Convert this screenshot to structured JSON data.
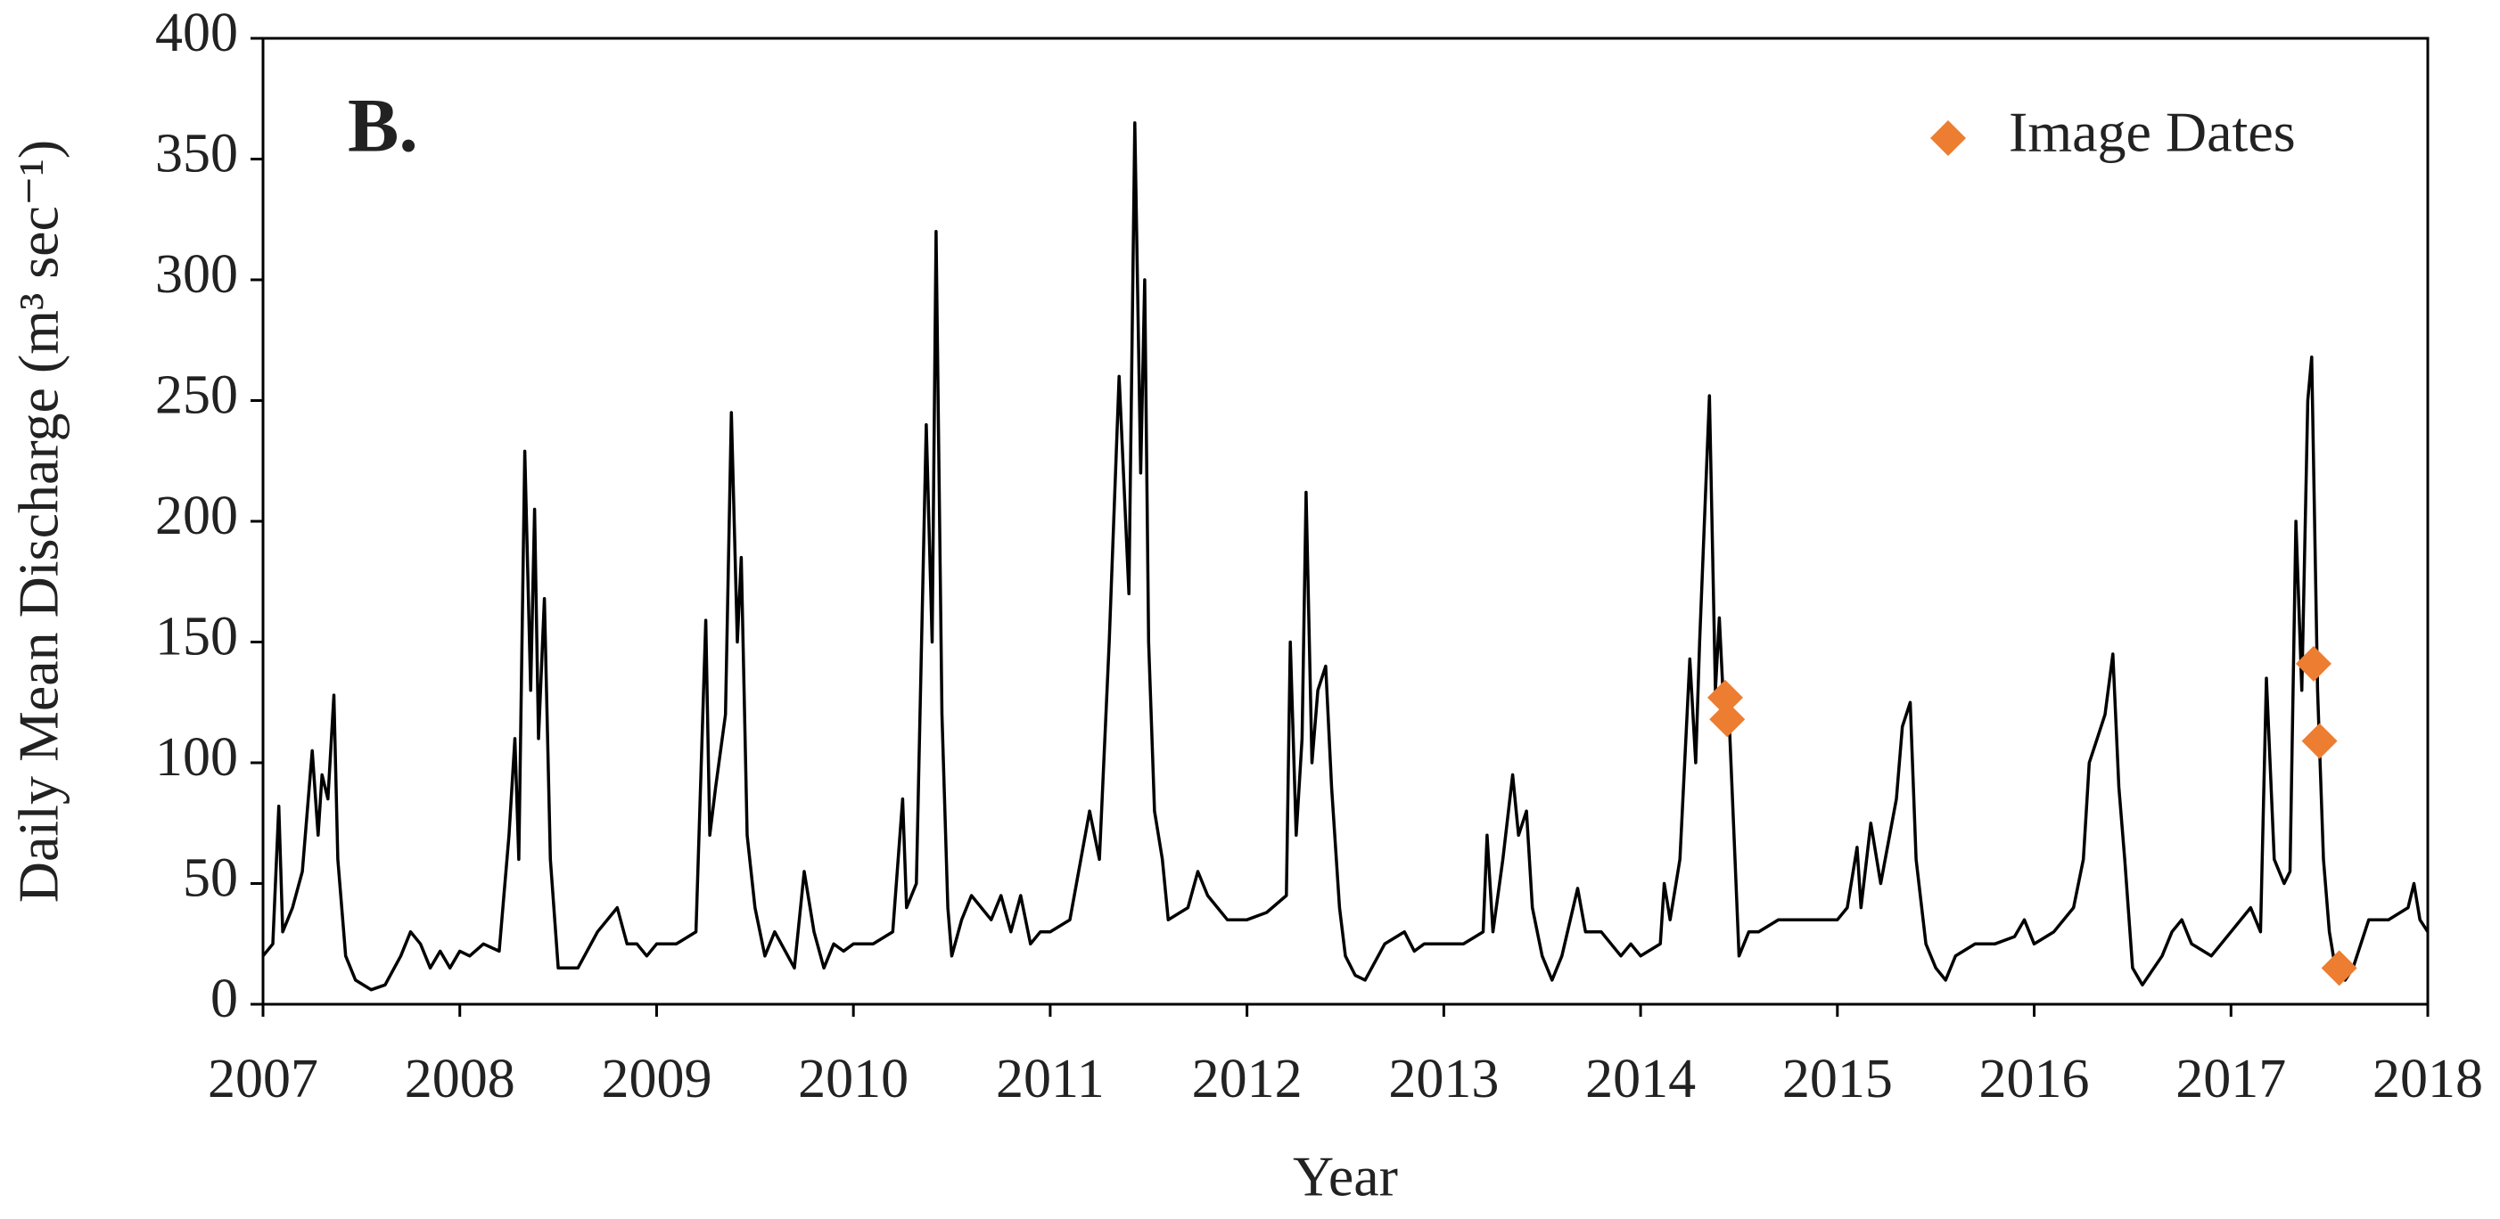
{
  "chart_data": {
    "type": "line",
    "annotation": "B.",
    "xlabel": "Year",
    "ylabel": "Daily Mean Discharge (m³ sec⁻¹)",
    "xlim": [
      2007,
      2018
    ],
    "ylim": [
      0,
      400
    ],
    "xticks": [
      2007,
      2008,
      2009,
      2010,
      2011,
      2012,
      2013,
      2014,
      2015,
      2016,
      2017,
      2018
    ],
    "yticks": [
      0,
      50,
      100,
      150,
      200,
      250,
      300,
      350,
      400
    ],
    "legend": "upper right",
    "series": [
      {
        "color": "#000000",
        "type": "line",
        "x": [
          2007.0,
          2007.05,
          2007.08,
          2007.1,
          2007.15,
          2007.2,
          2007.25,
          2007.28,
          2007.3,
          2007.33,
          2007.36,
          2007.38,
          2007.42,
          2007.47,
          2007.55,
          2007.62,
          2007.7,
          2007.75,
          2007.8,
          2007.85,
          2007.9,
          2007.95,
          2008.0,
          2008.05,
          2008.12,
          2008.2,
          2008.25,
          2008.28,
          2008.3,
          2008.33,
          2008.36,
          2008.38,
          2008.4,
          2008.43,
          2008.46,
          2008.5,
          2008.6,
          2008.7,
          2008.8,
          2008.85,
          2008.9,
          2008.95,
          2009.0,
          2009.1,
          2009.2,
          2009.25,
          2009.27,
          2009.3,
          2009.35,
          2009.38,
          2009.41,
          2009.43,
          2009.46,
          2009.5,
          2009.55,
          2009.6,
          2009.7,
          2009.75,
          2009.8,
          2009.85,
          2009.9,
          2009.95,
          2010.0,
          2010.1,
          2010.2,
          2010.25,
          2010.27,
          2010.32,
          2010.37,
          2010.4,
          2010.42,
          2010.45,
          2010.48,
          2010.5,
          2010.55,
          2010.6,
          2010.7,
          2010.75,
          2010.8,
          2010.85,
          2010.9,
          2010.95,
          2011.0,
          2011.1,
          2011.2,
          2011.25,
          2011.3,
          2011.35,
          2011.4,
          2011.43,
          2011.46,
          2011.48,
          2011.5,
          2011.53,
          2011.57,
          2011.6,
          2011.7,
          2011.75,
          2011.8,
          2011.9,
          2011.95,
          2012.0,
          2012.1,
          2012.2,
          2012.22,
          2012.25,
          2012.28,
          2012.3,
          2012.33,
          2012.36,
          2012.4,
          2012.43,
          2012.47,
          2012.5,
          2012.55,
          2012.6,
          2012.7,
          2012.8,
          2012.85,
          2012.9,
          2012.95,
          2013.0,
          2013.1,
          2013.2,
          2013.22,
          2013.25,
          2013.3,
          2013.35,
          2013.38,
          2013.42,
          2013.45,
          2013.5,
          2013.55,
          2013.6,
          2013.68,
          2013.72,
          2013.8,
          2013.9,
          2013.95,
          2014.0,
          2014.1,
          2014.12,
          2014.15,
          2014.2,
          2014.25,
          2014.28,
          2014.3,
          2014.35,
          2014.38,
          2014.4,
          2014.42,
          2014.45,
          2014.48,
          2014.5,
          2014.55,
          2014.6,
          2014.7,
          2014.8,
          2014.9,
          2014.95,
          2015.0,
          2015.05,
          2015.1,
          2015.12,
          2015.17,
          2015.22,
          2015.3,
          2015.33,
          2015.37,
          2015.4,
          2015.45,
          2015.5,
          2015.55,
          2015.6,
          2015.7,
          2015.8,
          2015.9,
          2015.95,
          2016.0,
          2016.1,
          2016.2,
          2016.25,
          2016.28,
          2016.32,
          2016.36,
          2016.4,
          2016.43,
          2016.46,
          2016.5,
          2016.55,
          2016.65,
          2016.7,
          2016.75,
          2016.8,
          2016.9,
          2016.95,
          2017.0,
          2017.1,
          2017.15,
          2017.18,
          2017.22,
          2017.27,
          2017.3,
          2017.33,
          2017.36,
          2017.39,
          2017.41,
          2017.44,
          2017.47,
          2017.5,
          2017.53,
          2017.58,
          2017.62,
          2017.7,
          2017.8,
          2017.9,
          2017.93,
          2017.96,
          2018.0
        ],
        "values": [
          20,
          25,
          82,
          30,
          40,
          55,
          105,
          70,
          95,
          85,
          128,
          60,
          20,
          10,
          6,
          8,
          20,
          30,
          25,
          15,
          22,
          15,
          22,
          20,
          25,
          22,
          70,
          110,
          60,
          229,
          130,
          205,
          110,
          168,
          60,
          15,
          15,
          30,
          40,
          25,
          25,
          20,
          25,
          25,
          30,
          159,
          70,
          90,
          120,
          245,
          150,
          185,
          70,
          40,
          20,
          30,
          15,
          55,
          30,
          15,
          25,
          22,
          25,
          25,
          30,
          85,
          40,
          50,
          240,
          150,
          320,
          120,
          40,
          20,
          35,
          45,
          35,
          45,
          30,
          45,
          25,
          30,
          30,
          35,
          80,
          60,
          150,
          260,
          170,
          365,
          220,
          300,
          150,
          80,
          60,
          35,
          40,
          55,
          45,
          35,
          35,
          35,
          38,
          45,
          150,
          70,
          110,
          212,
          100,
          130,
          140,
          90,
          40,
          20,
          12,
          10,
          25,
          30,
          22,
          25,
          25,
          25,
          25,
          30,
          70,
          30,
          60,
          95,
          70,
          80,
          40,
          20,
          10,
          20,
          48,
          30,
          30,
          20,
          25,
          20,
          25,
          50,
          35,
          60,
          143,
          100,
          150,
          252,
          130,
          160,
          127,
          118,
          60,
          20,
          30,
          30,
          35,
          35,
          35,
          35,
          35,
          40,
          65,
          40,
          75,
          50,
          85,
          115,
          125,
          60,
          25,
          15,
          10,
          20,
          25,
          25,
          28,
          35,
          25,
          30,
          40,
          60,
          100,
          110,
          120,
          145,
          90,
          60,
          15,
          8,
          20,
          30,
          35,
          25,
          20,
          25,
          30,
          40,
          30,
          135,
          60,
          50,
          55,
          200,
          130,
          250,
          268,
          130,
          60,
          30,
          15,
          10,
          15,
          35,
          35,
          40,
          50,
          35,
          30
        ]
      },
      {
        "name": "Image Dates",
        "color": "#ed7d31",
        "type": "scatter",
        "x": [
          2014.43,
          2014.44,
          2017.42,
          2017.45,
          2017.55
        ],
        "values": [
          127,
          118,
          141,
          109,
          15
        ]
      }
    ]
  }
}
